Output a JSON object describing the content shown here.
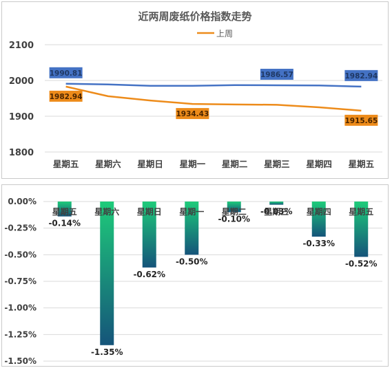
{
  "chart_data": [
    {
      "type": "line",
      "title": "近两周废纸价格指数走势",
      "categories": [
        "星期五",
        "星期六",
        "星期日",
        "星期一",
        "星期二",
        "星期三",
        "星期四",
        "星期五"
      ],
      "ylim": [
        1800,
        2100
      ],
      "yticks": [
        "1800",
        "1900",
        "2000",
        "2100"
      ],
      "grid": true,
      "legend_position": "top",
      "series": [
        {
          "name": "",
          "color": "#4472c4",
          "values": [
            1990.81,
            1989,
            1985,
            1985,
            1987,
            1986.57,
            1986,
            1982.94
          ],
          "labels": {
            "0": "1990.81",
            "5": "1986.57",
            "7": "1982.94"
          }
        },
        {
          "name": "上周",
          "color": "#ed8b1a",
          "values": [
            1982.94,
            1956,
            1944,
            1934.43,
            1933,
            1932,
            1925,
            1915.65
          ],
          "labels": {
            "0": "1982.94",
            "3": "1934.43",
            "7": "1915.65"
          }
        }
      ]
    },
    {
      "type": "bar",
      "categories": [
        "星期五",
        "星期六",
        "星期日",
        "星期一",
        "星期二",
        "星期三",
        "星期四",
        "星期五"
      ],
      "values": [
        -0.14,
        -1.35,
        -0.62,
        -0.5,
        -0.1,
        -0.03,
        -0.33,
        -0.52
      ],
      "labels": [
        "-0.14%",
        "-1.35%",
        "-0.62%",
        "-0.50%",
        "-0.10%",
        "-0.03%",
        "-0.33%",
        "-0.52%"
      ],
      "ylim": [
        -1.5,
        0
      ],
      "yticks": [
        "0.00%",
        "-0.25%",
        "-0.50%",
        "-0.75%",
        "-1.00%",
        "-1.25%",
        "-1.50%"
      ],
      "grid": true,
      "colors": {
        "top": "#1ecb7a",
        "bottom": "#15547a"
      }
    }
  ]
}
